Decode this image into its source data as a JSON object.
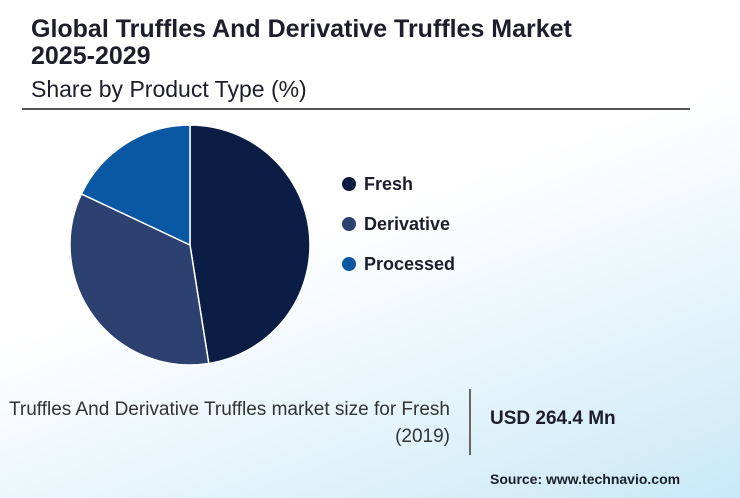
{
  "title": "Global Truffles And Derivative Truffles Market 2025-2029",
  "subtitle": "Share by Product Type (%)",
  "chart_data": {
    "type": "pie",
    "categories": [
      "Fresh",
      "Derivative",
      "Processed"
    ],
    "values": [
      47.5,
      34.5,
      18.0
    ],
    "colors": [
      "#0b1d44",
      "#2c4170",
      "#0a57a4"
    ],
    "legend_position": "right"
  },
  "footer": {
    "label": "Truffles And Derivative Truffles market size for Fresh (2019)",
    "value": "USD 264.4 Mn"
  },
  "source": {
    "label": "Source: ",
    "link": "www.technavio.com"
  }
}
